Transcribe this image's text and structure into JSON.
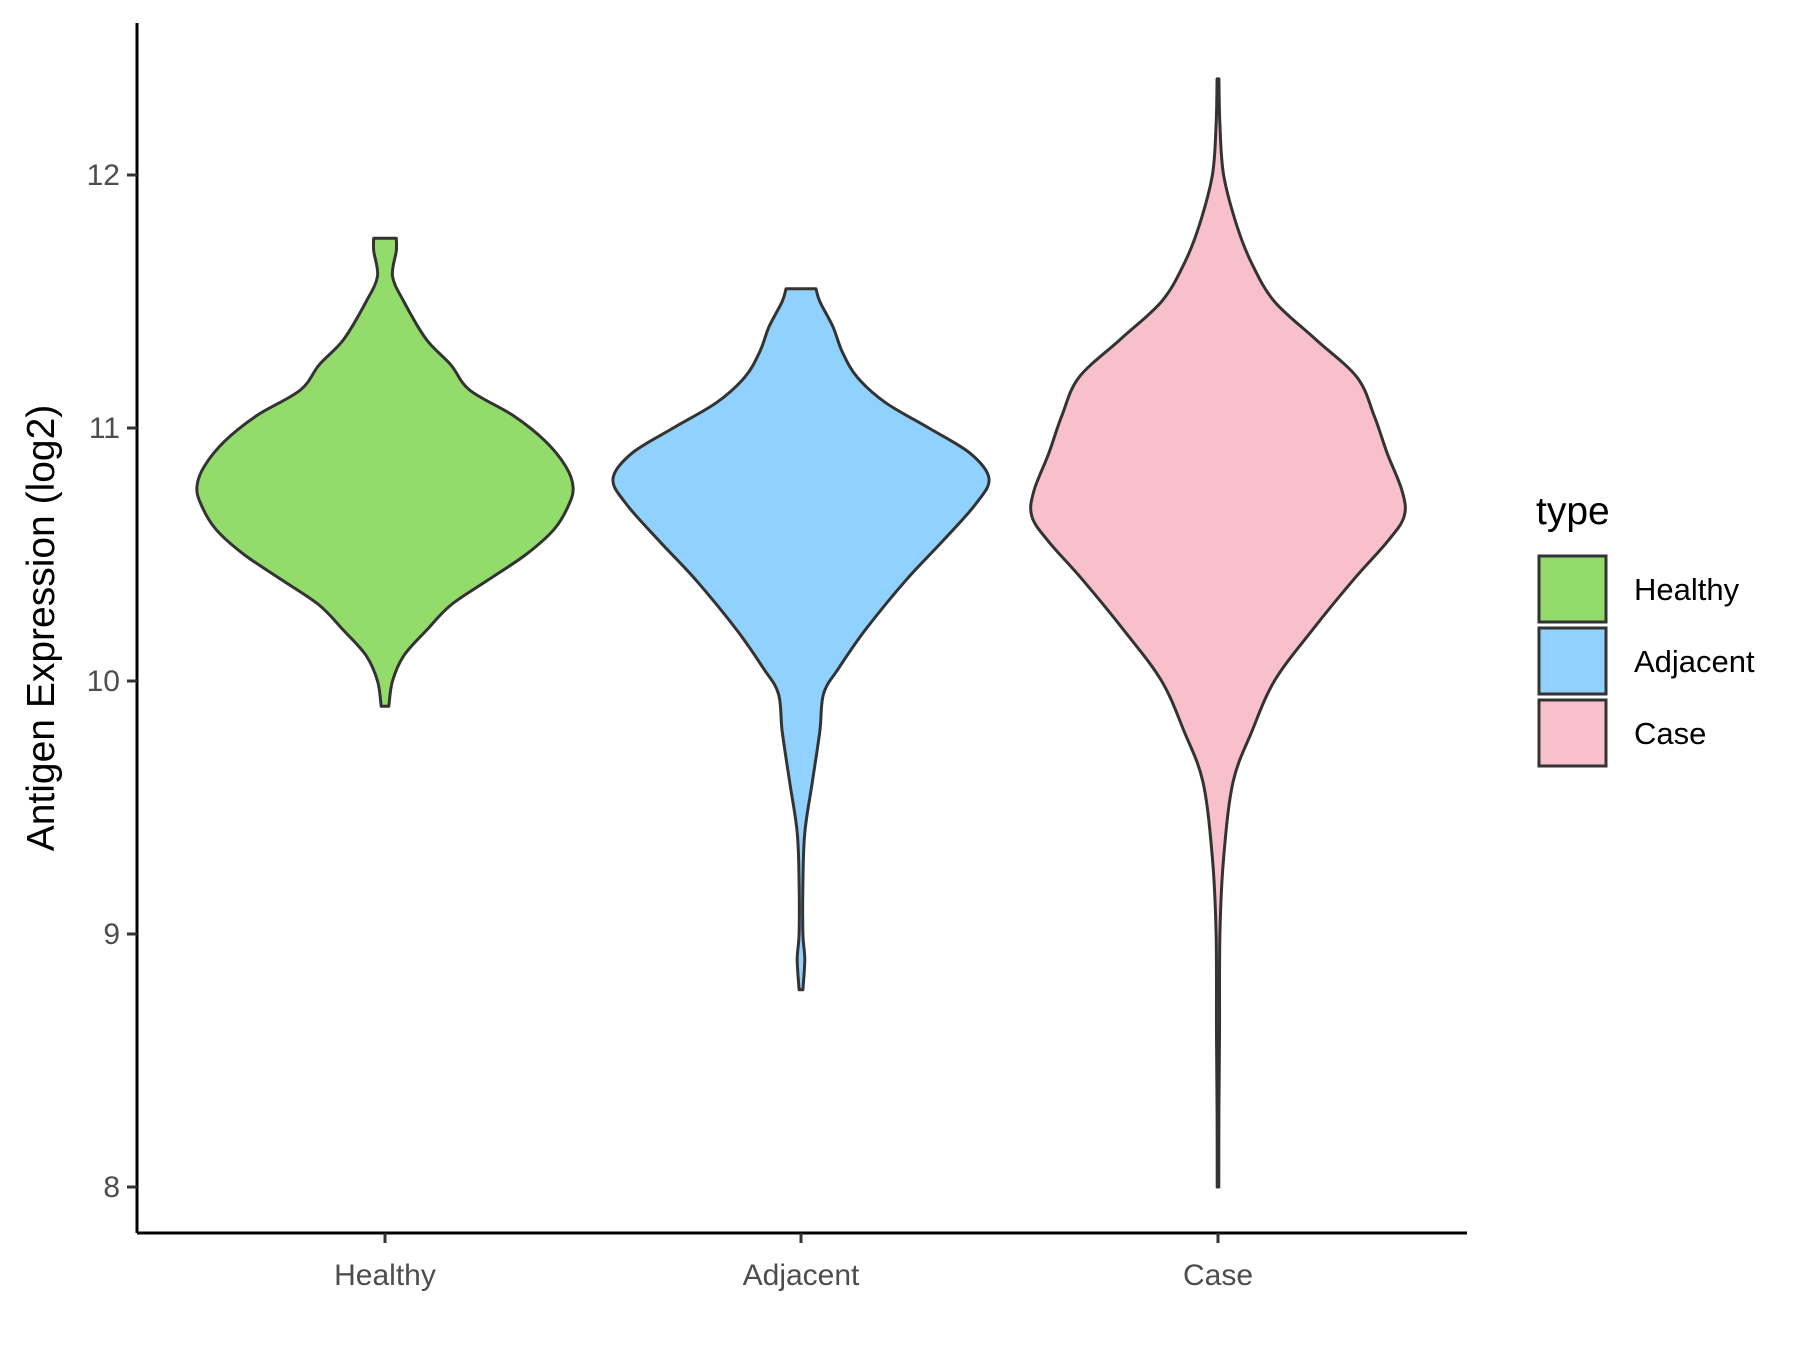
{
  "chart_data": {
    "type": "violin",
    "title": "",
    "xlabel": "",
    "ylabel": "Antigen Expression (log2)",
    "ylim": [
      7.8,
      12.6
    ],
    "yticks": [
      8,
      9,
      10,
      11,
      12
    ],
    "categories": [
      "Healthy",
      "Adjacent",
      "Case"
    ],
    "grid": false,
    "legend": {
      "title": "type",
      "position": "right",
      "entries": [
        "Healthy",
        "Adjacent",
        "Case"
      ]
    },
    "series": [
      {
        "name": "Healthy",
        "color": "#93db6b",
        "min": 9.9,
        "max": 11.75,
        "density_profile": [
          [
            9.9,
            0.02
          ],
          [
            10.0,
            0.04
          ],
          [
            10.1,
            0.1
          ],
          [
            10.2,
            0.22
          ],
          [
            10.3,
            0.35
          ],
          [
            10.4,
            0.55
          ],
          [
            10.5,
            0.75
          ],
          [
            10.6,
            0.9
          ],
          [
            10.7,
            0.98
          ],
          [
            10.77,
            1.0
          ],
          [
            10.85,
            0.96
          ],
          [
            10.95,
            0.85
          ],
          [
            11.05,
            0.68
          ],
          [
            11.15,
            0.45
          ],
          [
            11.25,
            0.35
          ],
          [
            11.35,
            0.22
          ],
          [
            11.5,
            0.1
          ],
          [
            11.6,
            0.04
          ],
          [
            11.7,
            0.06
          ],
          [
            11.75,
            0.06
          ]
        ]
      },
      {
        "name": "Adjacent",
        "color": "#91d1fd",
        "min": 8.78,
        "max": 11.55,
        "density_profile": [
          [
            8.78,
            0.01
          ],
          [
            8.9,
            0.02
          ],
          [
            9.0,
            0.01
          ],
          [
            9.2,
            0.01
          ],
          [
            9.4,
            0.02
          ],
          [
            9.6,
            0.06
          ],
          [
            9.8,
            0.1
          ],
          [
            9.95,
            0.12
          ],
          [
            10.05,
            0.2
          ],
          [
            10.2,
            0.34
          ],
          [
            10.4,
            0.56
          ],
          [
            10.55,
            0.75
          ],
          [
            10.7,
            0.93
          ],
          [
            10.8,
            1.0
          ],
          [
            10.9,
            0.9
          ],
          [
            11.0,
            0.68
          ],
          [
            11.1,
            0.45
          ],
          [
            11.2,
            0.3
          ],
          [
            11.3,
            0.22
          ],
          [
            11.4,
            0.17
          ],
          [
            11.5,
            0.1
          ],
          [
            11.55,
            0.08
          ]
        ]
      },
      {
        "name": "Case",
        "color": "#f7c0cb",
        "min": 8.0,
        "max": 12.38,
        "density_profile": [
          [
            8.0,
            0.003
          ],
          [
            8.3,
            0.005
          ],
          [
            8.6,
            0.008
          ],
          [
            9.0,
            0.01
          ],
          [
            9.3,
            0.03
          ],
          [
            9.6,
            0.08
          ],
          [
            9.8,
            0.18
          ],
          [
            10.0,
            0.3
          ],
          [
            10.2,
            0.5
          ],
          [
            10.4,
            0.72
          ],
          [
            10.55,
            0.9
          ],
          [
            10.65,
            0.99
          ],
          [
            10.75,
            0.98
          ],
          [
            10.9,
            0.9
          ],
          [
            11.05,
            0.83
          ],
          [
            11.2,
            0.74
          ],
          [
            11.35,
            0.52
          ],
          [
            11.5,
            0.3
          ],
          [
            11.65,
            0.18
          ],
          [
            11.8,
            0.1
          ],
          [
            12.0,
            0.03
          ],
          [
            12.2,
            0.01
          ],
          [
            12.38,
            0.005
          ]
        ]
      }
    ]
  }
}
